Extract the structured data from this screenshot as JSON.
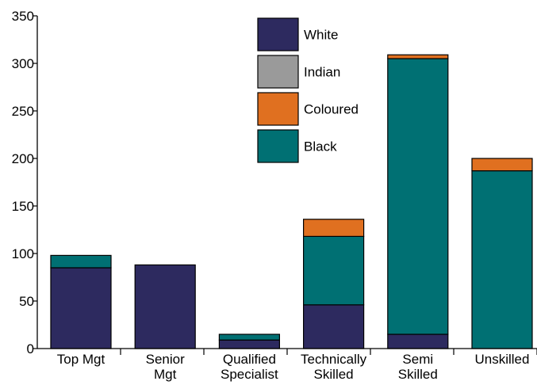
{
  "chart_data": {
    "type": "bar",
    "stacked": true,
    "title": "",
    "xlabel": "",
    "ylabel": "",
    "ylim": [
      0,
      350
    ],
    "yticks": [
      0,
      50,
      100,
      150,
      200,
      250,
      300,
      350
    ],
    "grid": false,
    "legend_position": "top-center",
    "categories": [
      [
        "Top Mgt"
      ],
      [
        "Senior",
        "Mgt"
      ],
      [
        "Qualified",
        "Specialist"
      ],
      [
        "Technically",
        "Skilled"
      ],
      [
        "Semi",
        "Skilled"
      ],
      [
        "Unskilled"
      ]
    ],
    "series": [
      {
        "name": "White",
        "color": "#2d2a5f",
        "values": [
          85,
          88,
          9,
          46,
          15,
          0
        ]
      },
      {
        "name": "Indian",
        "color": "#9a9a9a",
        "values": [
          0,
          0,
          0,
          0,
          0,
          0
        ]
      },
      {
        "name": "Black",
        "color": "#007073",
        "values": [
          13,
          0,
          6,
          72,
          290,
          187
        ]
      },
      {
        "name": "Coloured",
        "color": "#e07020",
        "values": [
          0,
          0,
          0,
          18,
          4,
          13
        ]
      }
    ],
    "legend_order": [
      "White",
      "Indian",
      "Coloured",
      "Black"
    ]
  }
}
